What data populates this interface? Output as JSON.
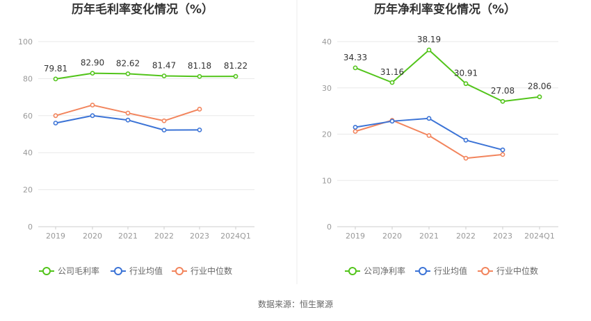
{
  "colors": {
    "company": "#52c41a",
    "industry_avg": "#3b73d6",
    "industry_median": "#f2845c",
    "grid": "#e8e8e8",
    "axis": "#cccccc",
    "divider": "#eeeeee"
  },
  "source_text": "数据来源：恒生聚源",
  "chart_data": [
    {
      "type": "line",
      "title": "历年毛利率变化情况（%）",
      "categories": [
        "2019",
        "2020",
        "2021",
        "2022",
        "2023",
        "2024Q1"
      ],
      "ylim": [
        0,
        100
      ],
      "yticks": [
        0,
        20,
        40,
        60,
        80,
        100
      ],
      "grid": true,
      "legend_position": "bottom",
      "series": [
        {
          "name": "公司毛利率",
          "color": "#52c41a",
          "values": [
            79.81,
            82.9,
            82.62,
            81.47,
            81.18,
            81.22
          ],
          "labels": [
            "79.81",
            "82.90",
            "82.62",
            "81.47",
            "81.18",
            "81.22"
          ]
        },
        {
          "name": "行业均值",
          "color": "#3b73d6",
          "values": [
            56.0,
            60.0,
            57.6,
            52.2,
            52.3,
            null
          ]
        },
        {
          "name": "行业中位数",
          "color": "#f2845c",
          "values": [
            60.0,
            65.7,
            61.4,
            57.2,
            63.5,
            null
          ]
        }
      ]
    },
    {
      "type": "line",
      "title": "历年净利率变化情况（%）",
      "categories": [
        "2019",
        "2020",
        "2021",
        "2022",
        "2023",
        "2024Q1"
      ],
      "ylim": [
        0,
        40
      ],
      "yticks": [
        0,
        10,
        20,
        30,
        40
      ],
      "grid": true,
      "legend_position": "bottom",
      "series": [
        {
          "name": "公司净利率",
          "color": "#52c41a",
          "values": [
            34.33,
            31.16,
            38.19,
            30.91,
            27.08,
            28.06
          ],
          "labels": [
            "34.33",
            "31.16",
            "38.19",
            "30.91",
            "27.08",
            "28.06"
          ]
        },
        {
          "name": "行业均值",
          "color": "#3b73d6",
          "values": [
            21.5,
            22.8,
            23.4,
            18.7,
            16.6,
            null
          ]
        },
        {
          "name": "行业中位数",
          "color": "#f2845c",
          "values": [
            20.6,
            23.0,
            19.7,
            14.8,
            15.6,
            null
          ]
        }
      ]
    }
  ]
}
